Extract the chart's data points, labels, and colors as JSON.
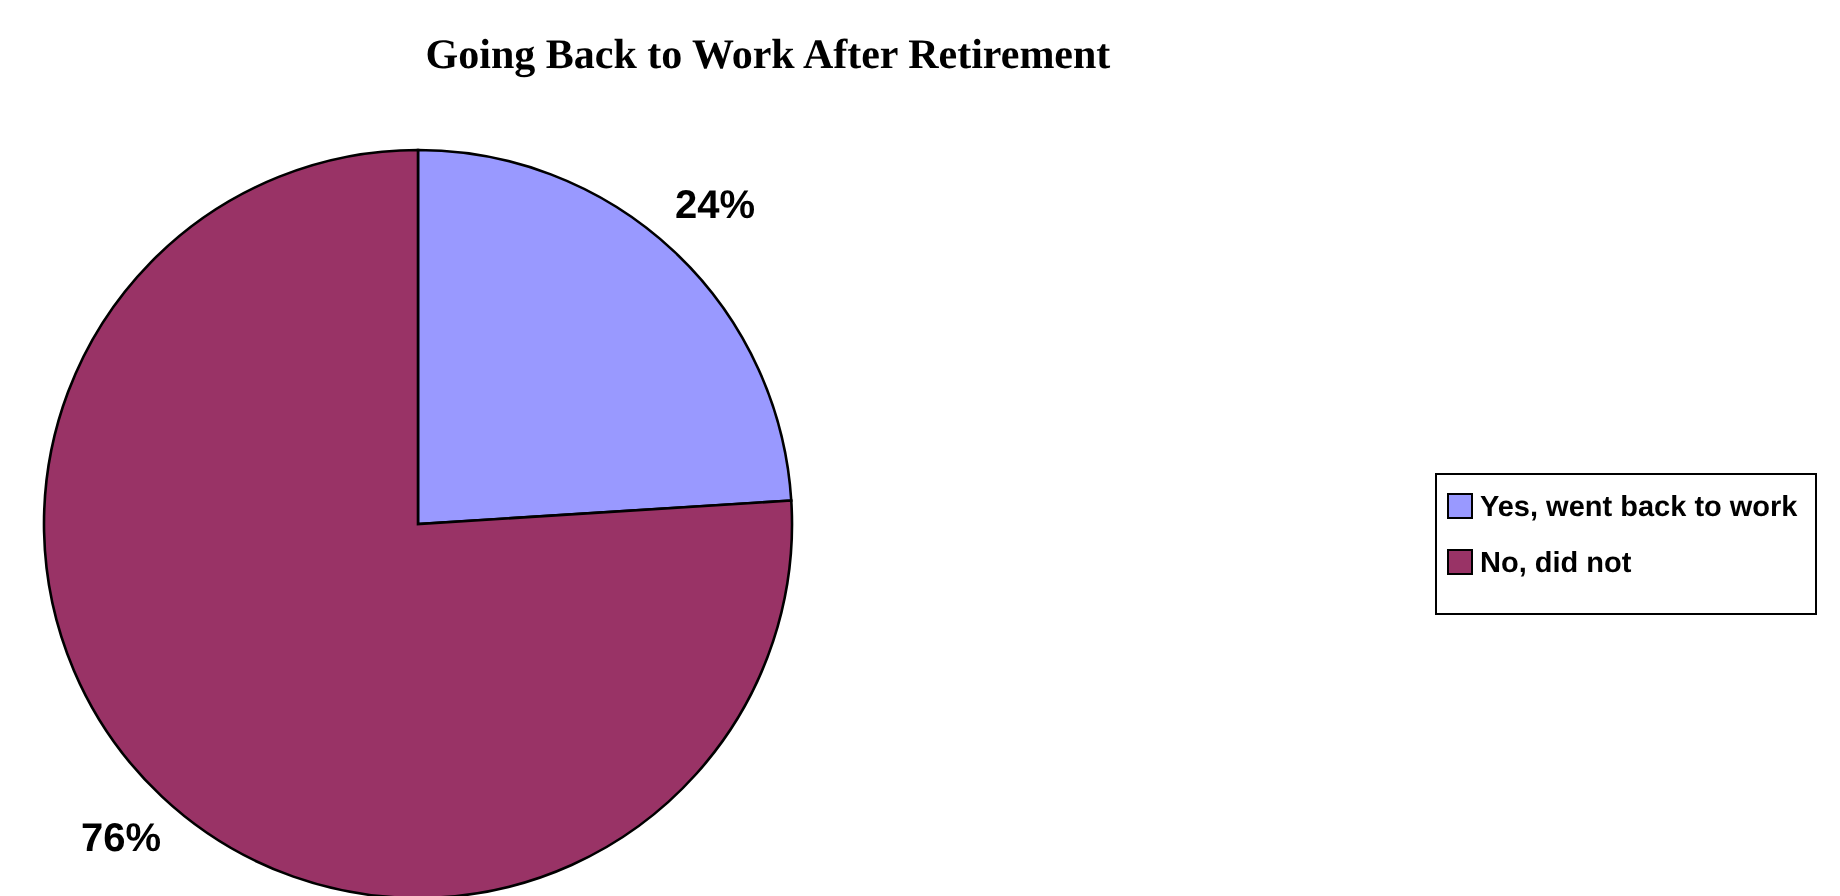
{
  "chart_data": {
    "type": "pie",
    "title": "Going Back to Work After Retirement",
    "categories": [
      "Yes, went back to work",
      "No, did not"
    ],
    "values": [
      24,
      76
    ],
    "colors": [
      "#9999ff",
      "#993366"
    ],
    "value_labels": [
      "24%",
      "76%"
    ],
    "legend": "right"
  }
}
